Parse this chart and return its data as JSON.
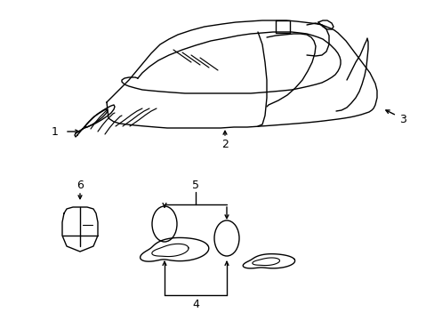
{
  "background_color": "#ffffff",
  "fig_width": 4.89,
  "fig_height": 3.6,
  "dpi": 100,
  "line_color": "#000000",
  "line_width": 1.0,
  "label_fontsize": 9
}
